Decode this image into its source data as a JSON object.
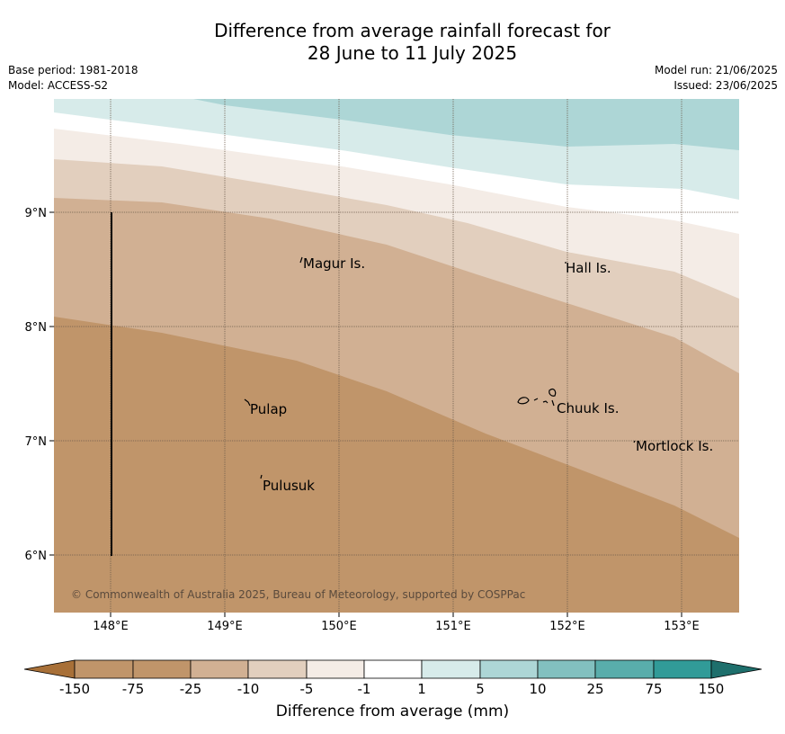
{
  "header": {
    "title_line1": "Difference from average rainfall forecast for",
    "title_line2": "28 June to 11 July 2025",
    "base_period": "Base period: 1981-2018",
    "model": "Model: ACCESS-S2",
    "model_run": "Model run: 21/06/2025",
    "issued": "Issued: 23/06/2025"
  },
  "map": {
    "lon_ticks": [
      "148°E",
      "149°E",
      "150°E",
      "151°E",
      "152°E",
      "153°E"
    ],
    "lat_ticks": [
      "9°N",
      "8°N",
      "7°N",
      "6°N"
    ],
    "copyright": "© Commonwealth of Australia 2025, Bureau of Meteorology, supported by COSPPac",
    "places": [
      {
        "name": "Magur Is."
      },
      {
        "name": "Hall Is."
      },
      {
        "name": "Pulap"
      },
      {
        "name": "Chuuk Is."
      },
      {
        "name": "Mortlock Is."
      },
      {
        "name": "Pulusuk"
      }
    ]
  },
  "legend": {
    "ticks": [
      "-150",
      "-75",
      "-25",
      "-10",
      "-5",
      "-1",
      "1",
      "5",
      "10",
      "25",
      "75",
      "150"
    ],
    "colors": [
      "#a87038",
      "#c0956a",
      "#d1b093",
      "#e2cfbe",
      "#f4ece6",
      "#ffffff",
      "#d7ebea",
      "#add6d6",
      "#82c0bf",
      "#59adab",
      "#319b98",
      "#1e6f6c"
    ],
    "label": "Difference from average (mm)"
  }
}
